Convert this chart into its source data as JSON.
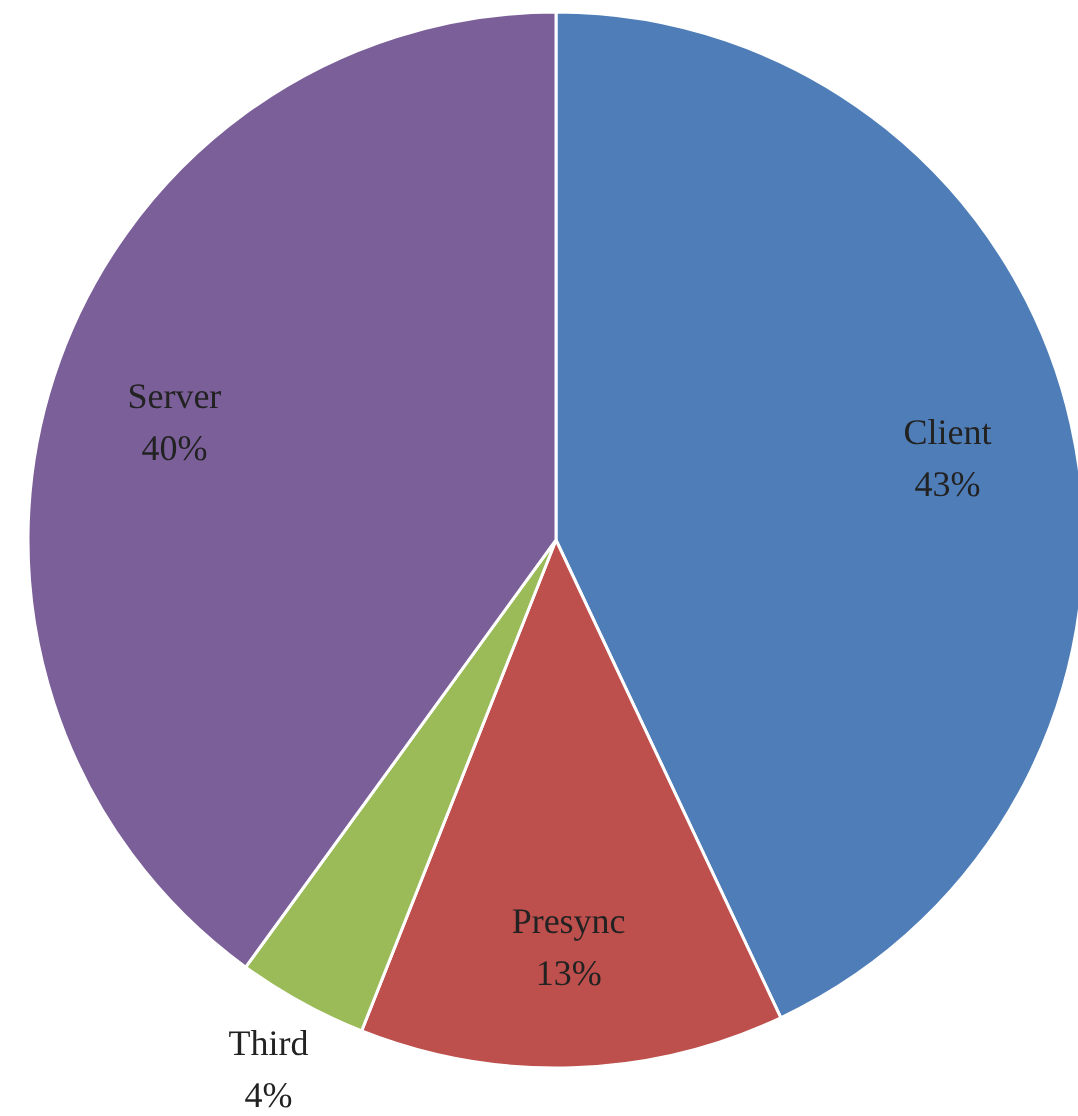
{
  "chart_data": {
    "type": "pie",
    "categories": [
      "Client",
      "Presync",
      "Third",
      "Server"
    ],
    "values": [
      43,
      13,
      4,
      40
    ],
    "colors": [
      "#4f7db8",
      "#bd4f4c",
      "#9bbb59",
      "#7b5f99"
    ],
    "value_labels": [
      "43%",
      "13%",
      "4%",
      "40%"
    ]
  }
}
